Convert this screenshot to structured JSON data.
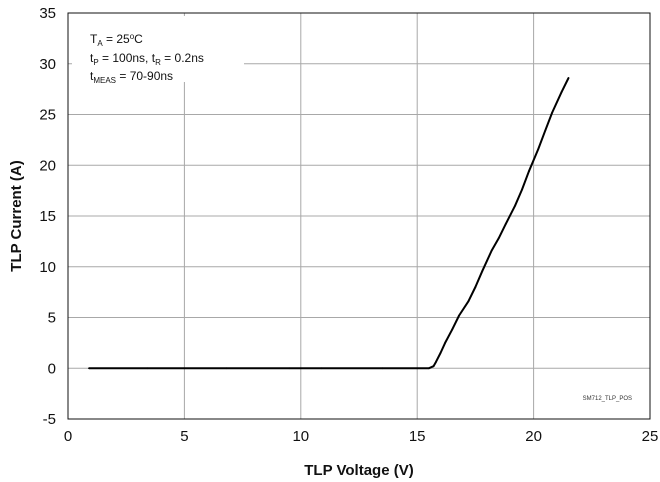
{
  "chart_data": {
    "type": "line",
    "xlabel": "TLP Voltage (V)",
    "ylabel": "TLP Current (A)",
    "xlim": [
      0,
      25
    ],
    "ylim": [
      -5,
      35
    ],
    "x_ticks": [
      0,
      5,
      10,
      15,
      20,
      25
    ],
    "y_ticks": [
      -5,
      0,
      5,
      10,
      15,
      20,
      25,
      30,
      35
    ],
    "grid": true,
    "legend": "none",
    "series": [
      {
        "color": "#000000",
        "x": [
          0.9,
          3.4,
          6.8,
          9.5,
          10.9,
          13.5,
          15.5,
          15.7,
          15.8,
          16.0,
          16.2,
          16.5,
          16.8,
          17.2,
          17.5,
          17.8,
          18.2,
          18.5,
          18.8,
          19.2,
          19.5,
          19.8,
          20.2,
          20.5,
          20.8,
          21.2,
          21.5
        ],
        "y": [
          0,
          0,
          0,
          0,
          0,
          0,
          0,
          0.2,
          0.6,
          1.5,
          2.5,
          3.8,
          5.2,
          6.6,
          8.0,
          9.6,
          11.6,
          12.8,
          14.2,
          16.0,
          17.6,
          19.4,
          21.6,
          23.4,
          25.2,
          27.2,
          28.6
        ]
      }
    ],
    "annotations": {
      "line1_main": "T",
      "line1_sub": "A",
      "line1_rest": " = 25",
      "line1_deg": "o",
      "line1_unit": "C",
      "line2_a": "t",
      "line2_a_sub": "P",
      "line2_b": " = 100ns, t",
      "line2_b_sub": "R",
      "line2_c": " = 0.2ns",
      "line3_a": "t",
      "line3_a_sub": "MEAS",
      "line3_b": " = 70-90ns"
    },
    "figure_id": "SM712_TLP_POS"
  }
}
